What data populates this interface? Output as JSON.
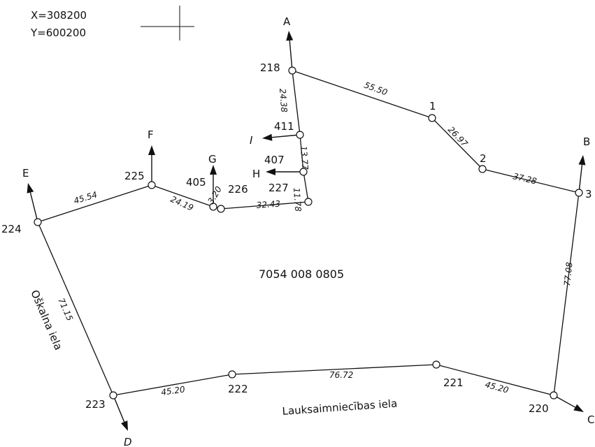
{
  "coords": {
    "x_label": "X=308200",
    "y_label": "Y=600200"
  },
  "parcel_id": "7054 008 0805",
  "streets": {
    "west": "Oškalna iela",
    "south": "Lauksaimniecības iela"
  },
  "points": [
    {
      "id": "218",
      "label": "218"
    },
    {
      "id": "1",
      "label": "1"
    },
    {
      "id": "2",
      "label": "2"
    },
    {
      "id": "3",
      "label": "3"
    },
    {
      "id": "220",
      "label": "220"
    },
    {
      "id": "221",
      "label": "221"
    },
    {
      "id": "222",
      "label": "222"
    },
    {
      "id": "223",
      "label": "223"
    },
    {
      "id": "224",
      "label": "224"
    },
    {
      "id": "225",
      "label": "225"
    },
    {
      "id": "405",
      "label": "405"
    },
    {
      "id": "226",
      "label": "226"
    },
    {
      "id": "227",
      "label": "227"
    },
    {
      "id": "407",
      "label": "407"
    },
    {
      "id": "411",
      "label": "411"
    }
  ],
  "edges": [
    {
      "from": "218",
      "to": "1",
      "length": "55.50"
    },
    {
      "from": "1",
      "to": "2",
      "length": "26.97"
    },
    {
      "from": "2",
      "to": "3",
      "length": "37.28"
    },
    {
      "from": "3",
      "to": "220",
      "length": "77.08"
    },
    {
      "from": "220",
      "to": "221",
      "length": "45.20"
    },
    {
      "from": "221",
      "to": "222",
      "length": "76.72"
    },
    {
      "from": "222",
      "to": "223",
      "length": "45.20"
    },
    {
      "from": "223",
      "to": "224",
      "length": "71.15"
    },
    {
      "from": "224",
      "to": "225",
      "length": "45.54"
    },
    {
      "from": "225",
      "to": "405",
      "length": "24.19"
    },
    {
      "from": "405",
      "to": "226",
      "length": "3.20"
    },
    {
      "from": "226",
      "to": "227",
      "length": "32.43"
    },
    {
      "from": "227",
      "to": "407",
      "length": "11.78"
    },
    {
      "from": "407",
      "to": "411",
      "length": "13.77"
    },
    {
      "from": "411",
      "to": "218",
      "length": "24.38"
    }
  ],
  "directions": [
    "A",
    "B",
    "C",
    "D",
    "E",
    "F",
    "G",
    "H",
    "I"
  ]
}
